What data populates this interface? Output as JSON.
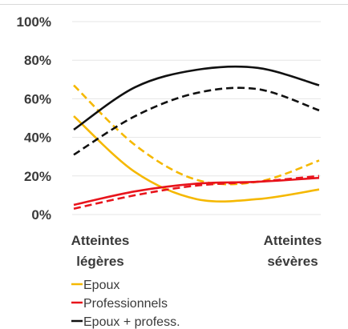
{
  "chart_data": {
    "type": "line",
    "title": "",
    "xlabel": "",
    "ylabel": "",
    "ylim": [
      0,
      100
    ],
    "y_ticks": [
      {
        "value": 0,
        "label": "0%"
      },
      {
        "value": 20,
        "label": "20%"
      },
      {
        "value": 40,
        "label": "40%"
      },
      {
        "value": 60,
        "label": "60%"
      },
      {
        "value": 80,
        "label": "80%"
      },
      {
        "value": 100,
        "label": "100%"
      }
    ],
    "grid": true,
    "x_range": [
      0,
      1
    ],
    "categories": [
      {
        "x": 0,
        "lines": [
          "Atteintes",
          "légères"
        ]
      },
      {
        "x": 1,
        "lines": [
          "Atteintes",
          "sévères"
        ]
      }
    ],
    "legend_position": "bottom-left",
    "legend": [
      {
        "label": "Epoux",
        "color": "#F5B800"
      },
      {
        "label": "Professionnels",
        "color": "#E8141C"
      },
      {
        "label": "Epoux + profess.",
        "color": "#111111"
      }
    ],
    "series": [
      {
        "legend_index": 0,
        "color": "#F5B800",
        "dashed": false,
        "x": [
          0,
          0.25,
          0.5,
          0.75,
          1
        ],
        "values": [
          51,
          22,
          8,
          8,
          13
        ]
      },
      {
        "legend_index": 0,
        "color": "#F5B800",
        "dashed": true,
        "x": [
          0,
          0.25,
          0.5,
          0.75,
          1
        ],
        "values": [
          67,
          36,
          18,
          17,
          28
        ]
      },
      {
        "legend_index": 1,
        "color": "#E8141C",
        "dashed": false,
        "x": [
          0,
          0.25,
          0.5,
          0.75,
          1
        ],
        "values": [
          5,
          12,
          16,
          17,
          19
        ]
      },
      {
        "legend_index": 1,
        "color": "#E8141C",
        "dashed": true,
        "x": [
          0,
          0.25,
          0.5,
          0.75,
          1
        ],
        "values": [
          3,
          10,
          15,
          17,
          20
        ]
      },
      {
        "legend_index": 2,
        "color": "#111111",
        "dashed": false,
        "x": [
          0,
          0.25,
          0.5,
          0.75,
          1
        ],
        "values": [
          44,
          66,
          75,
          76,
          67
        ]
      },
      {
        "legend_index": 2,
        "color": "#111111",
        "dashed": true,
        "x": [
          0,
          0.25,
          0.5,
          0.75,
          1
        ],
        "values": [
          31,
          51,
          63,
          65,
          54
        ]
      }
    ]
  }
}
